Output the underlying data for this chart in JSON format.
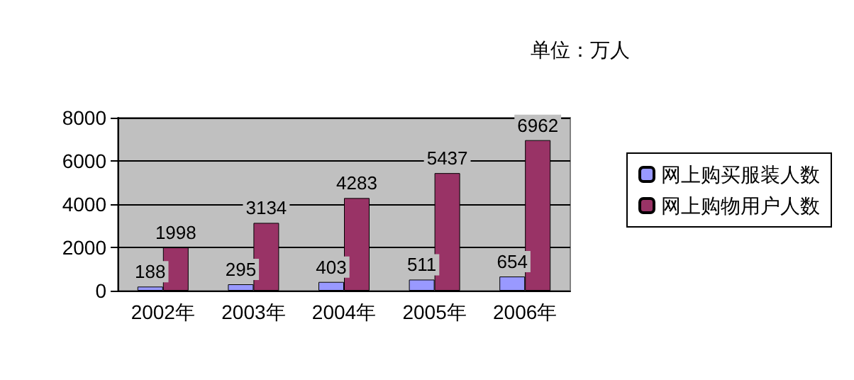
{
  "chart_data": {
    "type": "bar",
    "annotations": [
      "单位：万人"
    ],
    "categories": [
      "2002年",
      "2003年",
      "2004年",
      "2005年",
      "2006年"
    ],
    "series": [
      {
        "name": "网上购买服装人数",
        "color": "#9999ff",
        "values": [
          188,
          295,
          403,
          511,
          654
        ]
      },
      {
        "name": "网上购物用户人数",
        "color": "#993366",
        "values": [
          1998,
          3134,
          4283,
          5437,
          6962
        ]
      }
    ],
    "ylim": [
      0,
      8000
    ],
    "yticks": [
      0,
      2000,
      4000,
      6000,
      8000
    ],
    "grid": "y",
    "legend": "right",
    "data_labels": true
  }
}
